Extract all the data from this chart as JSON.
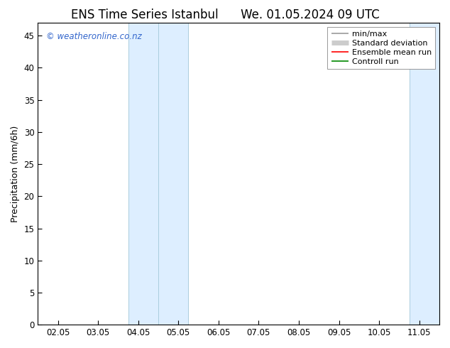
{
  "title_left": "ENS Time Series Istanbul",
  "title_right": "We. 01.05.2024 09 UTC",
  "ylabel": "Precipitation (mm/6h)",
  "xlabel": "",
  "bg_color": "#ffffff",
  "plot_bg_color": "#ffffff",
  "x_tick_labels": [
    "02.05",
    "03.05",
    "04.05",
    "05.05",
    "06.05",
    "07.05",
    "08.05",
    "09.05",
    "10.05",
    "11.05"
  ],
  "x_tick_positions": [
    0,
    1,
    2,
    3,
    4,
    5,
    6,
    7,
    8,
    9
  ],
  "x_min": -0.5,
  "x_max": 9.5,
  "y_min": 0,
  "y_max": 47,
  "y_ticks": [
    0,
    5,
    10,
    15,
    20,
    25,
    30,
    35,
    40,
    45
  ],
  "shaded_regions": [
    {
      "x_start": 1.75,
      "x_end": 2.5,
      "color": "#ddeeff"
    },
    {
      "x_start": 2.5,
      "x_end": 3.25,
      "color": "#ddeeff"
    },
    {
      "x_start": 8.75,
      "x_end": 9.5,
      "color": "#ddeeff"
    }
  ],
  "shaded_borders": [
    {
      "x": 1.75
    },
    {
      "x": 2.5
    },
    {
      "x": 3.25
    },
    {
      "x": 8.75
    },
    {
      "x": 9.5
    }
  ],
  "shaded_color": "#c8dff0",
  "shaded_border_color": "#aaccdd",
  "watermark": "© weatheronline.co.nz",
  "watermark_color": "#3366cc",
  "legend_entries": [
    {
      "label": "min/max",
      "color": "#999999",
      "lw": 1.2
    },
    {
      "label": "Standard deviation",
      "color": "#cccccc",
      "lw": 5
    },
    {
      "label": "Ensemble mean run",
      "color": "#ff0000",
      "lw": 1.2
    },
    {
      "label": "Controll run",
      "color": "#008800",
      "lw": 1.2
    }
  ],
  "title_fontsize": 12,
  "tick_fontsize": 8.5,
  "ylabel_fontsize": 9,
  "watermark_fontsize": 8.5,
  "legend_fontsize": 8
}
